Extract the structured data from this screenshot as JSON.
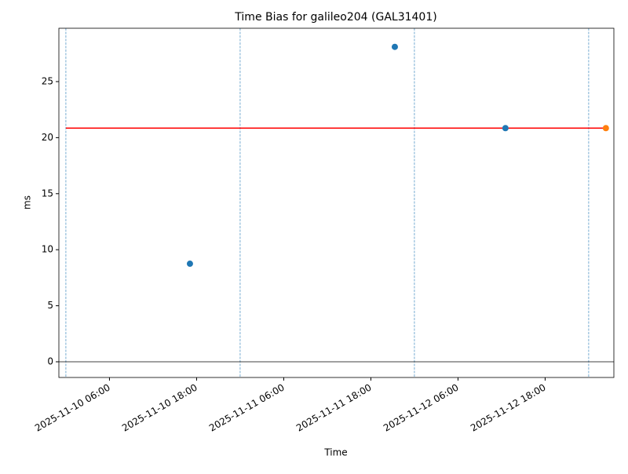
{
  "chart_data": {
    "type": "scatter",
    "title": "Time Bias for galileo204 (GAL31401)",
    "x_label": "Time",
    "y_label": "ms",
    "series": [
      {
        "color": "#1f77b4",
        "x": [
          "2025-11-10 17:05",
          "2025-11-11 21:18",
          "2025-11-12 12:32"
        ],
        "values": [
          8.75,
          28.1,
          20.85
        ]
      },
      {
        "color": "#ff7f0e",
        "x": [
          "2025-11-13 02:22"
        ],
        "values": [
          20.85
        ]
      },
      {
        "type": "line",
        "color": "#ff0000",
        "x": [
          "2025-11-10 00:00",
          "2025-11-13 02:22"
        ],
        "values": [
          20.85,
          20.85
        ]
      }
    ],
    "hline": 0,
    "vlines": [
      "2025-11-10 00:00",
      "2025-11-11 00:00",
      "2025-11-12 00:00",
      "2025-11-13 00:00"
    ],
    "vline_color": "#1f77b4",
    "xlim": [
      "2025-11-09 23:02",
      "2025-11-13 03:28"
    ],
    "xticks": [
      "2025-11-10 06:00",
      "2025-11-10 18:00",
      "2025-11-11 06:00",
      "2025-11-11 18:00",
      "2025-11-12 06:00",
      "2025-11-12 18:00"
    ],
    "ylim": [
      -1.4,
      29.76
    ],
    "yticks": [
      0,
      5,
      10,
      15,
      20,
      25
    ]
  }
}
